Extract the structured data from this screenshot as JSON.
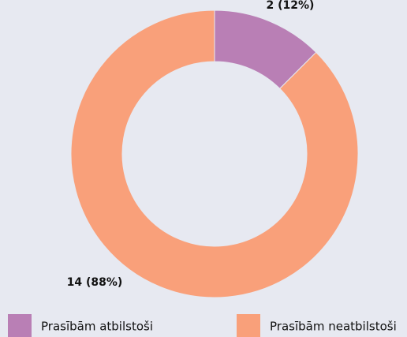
{
  "chart_data": {
    "type": "pie",
    "donut": true,
    "categories": [
      "Prasībām atbilstoši",
      "Prasībām neatbilstoši"
    ],
    "values": [
      2,
      14
    ],
    "value_labels": [
      "2 (12%)",
      "14 (88%)"
    ],
    "colors": [
      "#b97fb5",
      "#f9a07a"
    ]
  }
}
